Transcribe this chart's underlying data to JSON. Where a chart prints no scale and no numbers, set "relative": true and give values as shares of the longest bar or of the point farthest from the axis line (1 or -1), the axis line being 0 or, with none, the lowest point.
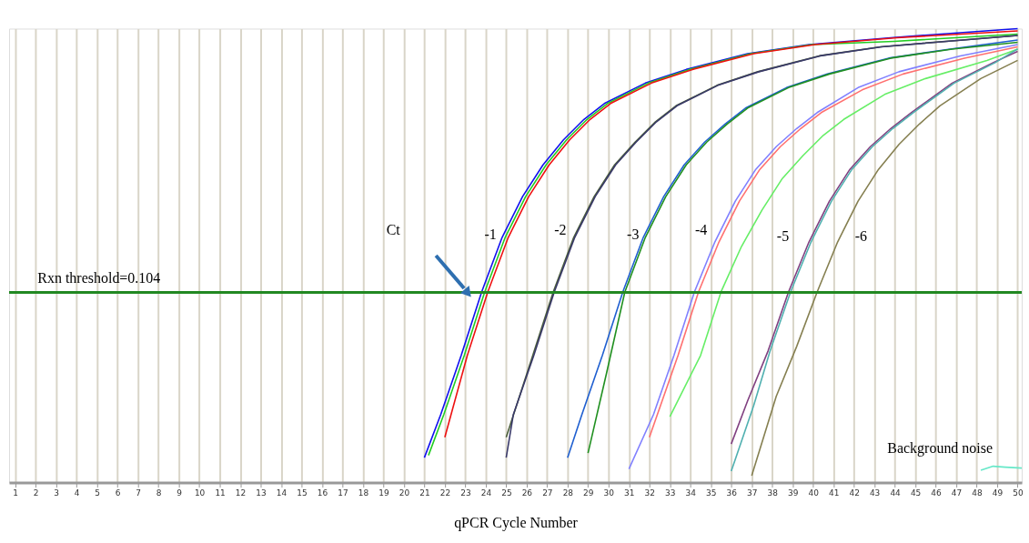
{
  "chart_data": {
    "type": "line",
    "relative": true,
    "xlabel": "qPCR Cycle Number",
    "xlim": [
      0.7,
      50.2
    ],
    "xticks": [
      1,
      2,
      3,
      4,
      5,
      6,
      7,
      8,
      9,
      10,
      11,
      12,
      13,
      14,
      15,
      16,
      17,
      18,
      19,
      20,
      21,
      22,
      23,
      24,
      25,
      26,
      27,
      28,
      29,
      30,
      31,
      32,
      33,
      34,
      35,
      36,
      37,
      38,
      39,
      40,
      41,
      42,
      43,
      44,
      45,
      46,
      47,
      48,
      49,
      50
    ],
    "grid": "x",
    "legend": false,
    "marker": "none",
    "line_style": "solid",
    "series": [
      {
        "color": "#1010ee",
        "x": [
          21,
          21.8,
          22.8,
          23.8,
          24.8,
          25.8,
          26.8,
          27.8,
          28.8,
          29.8,
          31.8,
          33.8,
          36.8,
          39.8,
          43.8,
          50
        ],
        "values": [
          0.055,
          0.15,
          0.28,
          0.42,
          0.54,
          0.63,
          0.7,
          0.755,
          0.8,
          0.835,
          0.88,
          0.91,
          0.945,
          0.965,
          0.98,
          1.0
        ]
      },
      {
        "color": "#22cc22",
        "x": [
          21.2,
          21.95,
          22.95,
          23.95,
          24.95,
          25.95,
          26.95,
          27.95,
          28.95,
          29.95,
          31.95,
          33.95,
          36.95,
          39.95,
          43.95,
          50
        ],
        "values": [
          0.06,
          0.15,
          0.28,
          0.42,
          0.54,
          0.63,
          0.7,
          0.755,
          0.8,
          0.835,
          0.88,
          0.91,
          0.945,
          0.965,
          0.972,
          0.988
        ]
      },
      {
        "color": "#ee1010",
        "x": [
          22,
          23.1,
          24.1,
          25.1,
          26.1,
          27.1,
          28.1,
          29.1,
          30.1,
          32.1,
          34.1,
          37.1,
          40.1,
          44.1,
          50
        ],
        "values": [
          0.1,
          0.28,
          0.42,
          0.54,
          0.63,
          0.7,
          0.755,
          0.8,
          0.835,
          0.88,
          0.91,
          0.945,
          0.965,
          0.98,
          0.995
        ]
      },
      {
        "color": "#4a5e3a",
        "x": [
          25,
          26.3,
          27.3,
          28.3,
          29.3,
          30.3,
          31.3,
          32.3,
          33.3,
          35.3,
          37.3,
          40.3,
          43.3,
          47.3,
          50
        ],
        "values": [
          0.1,
          0.28,
          0.42,
          0.54,
          0.63,
          0.7,
          0.75,
          0.795,
          0.83,
          0.875,
          0.905,
          0.94,
          0.96,
          0.975,
          0.985
        ]
      },
      {
        "color": "#3a3a6a",
        "x": [
          25,
          25.35,
          26.35,
          27.35,
          28.35,
          29.35,
          30.35,
          31.35,
          32.35,
          33.35,
          35.35,
          37.35,
          40.35,
          43.35,
          47.35,
          50
        ],
        "values": [
          0.055,
          0.15,
          0.28,
          0.42,
          0.54,
          0.63,
          0.7,
          0.75,
          0.795,
          0.83,
          0.875,
          0.905,
          0.94,
          0.96,
          0.975,
          0.985
        ]
      },
      {
        "color": "#1f5fd0",
        "x": [
          28,
          28.7,
          29.7,
          30.7,
          31.7,
          32.7,
          33.7,
          34.7,
          35.7,
          36.7,
          38.7,
          40.7,
          43.7,
          46.7,
          50
        ],
        "values": [
          0.055,
          0.15,
          0.28,
          0.42,
          0.54,
          0.63,
          0.7,
          0.75,
          0.79,
          0.825,
          0.87,
          0.9,
          0.935,
          0.955,
          0.975
        ]
      },
      {
        "color": "#209020",
        "x": [
          29,
          29.9,
          30.8,
          31.8,
          32.8,
          33.8,
          34.8,
          35.8,
          36.8,
          38.8,
          40.8,
          43.8,
          46.8,
          50
        ],
        "values": [
          0.065,
          0.24,
          0.42,
          0.54,
          0.63,
          0.7,
          0.75,
          0.79,
          0.825,
          0.87,
          0.9,
          0.935,
          0.955,
          0.97
        ]
      },
      {
        "color": "#8080ff",
        "x": [
          31,
          32.2,
          33.2,
          34.2,
          35.2,
          36.2,
          37.2,
          38.2,
          39.2,
          40.2,
          42.2,
          44.2,
          47.2,
          50
        ],
        "values": [
          0.03,
          0.15,
          0.28,
          0.42,
          0.53,
          0.62,
          0.69,
          0.74,
          0.78,
          0.815,
          0.87,
          0.905,
          0.94,
          0.965
        ]
      },
      {
        "color": "#ff7070",
        "x": [
          32,
          33.4,
          34.4,
          35.4,
          36.4,
          37.4,
          38.4,
          39.4,
          40.4,
          42.4,
          44.4,
          47.4,
          50
        ],
        "values": [
          0.1,
          0.28,
          0.42,
          0.53,
          0.62,
          0.69,
          0.74,
          0.78,
          0.815,
          0.865,
          0.9,
          0.935,
          0.96
        ]
      },
      {
        "color": "#66ee66",
        "x": [
          33,
          34.5,
          35.5,
          36.5,
          37.5,
          38.5,
          39.5,
          40.5,
          41.5,
          43.5,
          45.5,
          48.5,
          50
        ],
        "values": [
          0.145,
          0.28,
          0.42,
          0.52,
          0.6,
          0.67,
          0.72,
          0.765,
          0.8,
          0.855,
          0.89,
          0.93,
          0.955
        ]
      },
      {
        "color": "#804080",
        "x": [
          36,
          36.8,
          37.8,
          38.8,
          39.8,
          40.8,
          41.8,
          42.8,
          43.8,
          44.8,
          46.8,
          48.8,
          50
        ],
        "values": [
          0.085,
          0.18,
          0.29,
          0.42,
          0.53,
          0.62,
          0.69,
          0.74,
          0.78,
          0.815,
          0.88,
          0.925,
          0.95
        ]
      },
      {
        "color": "#50b0b0",
        "x": [
          36,
          37.1,
          37.9,
          38.9,
          39.9,
          40.9,
          41.9,
          42.9,
          43.9,
          44.9,
          46.9,
          48.9,
          50
        ],
        "values": [
          0.025,
          0.17,
          0.29,
          0.42,
          0.53,
          0.62,
          0.69,
          0.74,
          0.78,
          0.815,
          0.88,
          0.925,
          0.955
        ]
      },
      {
        "color": "#857f50",
        "x": [
          37,
          38.2,
          39.2,
          40.2,
          41.2,
          42.2,
          43.2,
          44.2,
          45.2,
          46.2,
          48.2,
          50
        ],
        "values": [
          0.015,
          0.19,
          0.3,
          0.42,
          0.53,
          0.62,
          0.69,
          0.745,
          0.79,
          0.83,
          0.89,
          0.93
        ]
      },
      {
        "color": "#66e8c8",
        "x": [
          48.2,
          48.8,
          49.4,
          50.2
        ],
        "values": [
          0.027,
          0.036,
          0.034,
          0.032
        ]
      }
    ],
    "ref_lines": [
      {
        "axis": "y",
        "value": 0.419,
        "color": "#228822"
      }
    ],
    "annotations": [
      "Ct",
      "-1",
      "-2",
      "-3",
      "-4",
      "-5",
      "-6",
      "Background noise",
      "Rxn threshold=0.104"
    ]
  }
}
